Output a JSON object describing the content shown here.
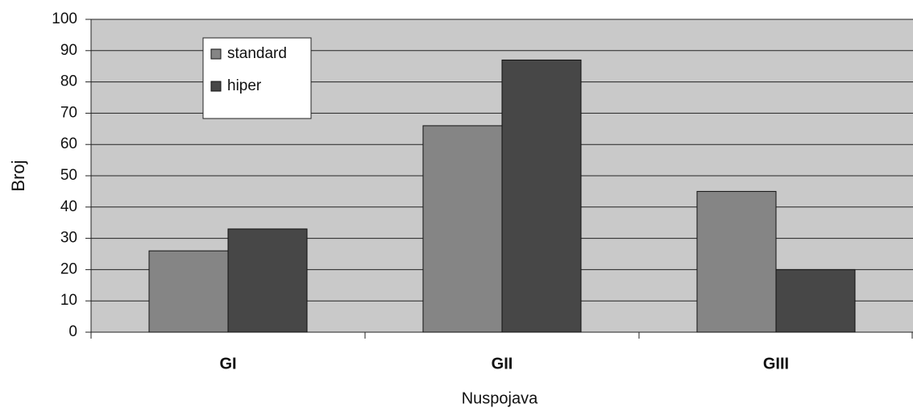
{
  "chart_data": {
    "type": "bar",
    "categories": [
      "GI",
      "GII",
      "GIII"
    ],
    "series": [
      {
        "name": "standard",
        "color": "#858585",
        "values": [
          26,
          66,
          45
        ]
      },
      {
        "name": "hiper",
        "color": "#474747",
        "values": [
          33,
          87,
          20
        ]
      }
    ],
    "ylim": [
      0,
      100
    ],
    "yticks": [
      0,
      10,
      20,
      30,
      40,
      50,
      60,
      70,
      80,
      90,
      100
    ],
    "grid": true,
    "legend": "top-left",
    "x_label": "Nuspojava",
    "y_label": "Broj"
  }
}
